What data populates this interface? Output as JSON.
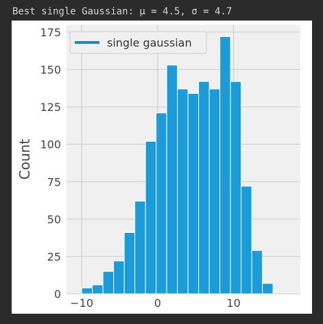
{
  "output": {
    "text": "Best single Gaussian: μ = 4.5, σ = 4.7"
  },
  "chart_data": {
    "type": "bar",
    "title": "",
    "xlabel": "",
    "ylabel": "Count",
    "bin_edges": [
      -10,
      -8.6,
      -7.2,
      -5.8,
      -4.4,
      -3.0,
      -1.6,
      -0.2,
      1.2,
      2.6,
      4.0,
      5.4,
      6.8,
      8.2,
      9.6,
      11.0,
      12.4,
      13.8,
      15.2
    ],
    "values": [
      4,
      6,
      15,
      22,
      41,
      62,
      102,
      121,
      153,
      137,
      134,
      142,
      137,
      172,
      142,
      72,
      29,
      7
    ],
    "xlim": [
      -12,
      18.8
    ],
    "ylim": [
      0,
      180
    ],
    "x_ticks": [
      -10,
      0,
      10
    ],
    "x_tick_labels": [
      "−10",
      "0",
      "10"
    ],
    "y_ticks": [
      0,
      25,
      50,
      75,
      100,
      125,
      150,
      175
    ],
    "y_tick_labels": [
      "0",
      "25",
      "50",
      "75",
      "100",
      "125",
      "150",
      "175"
    ],
    "grid": true,
    "legend": {
      "placement": "top-left",
      "entries": [
        {
          "label": "single gaussian",
          "color": "#008fd5"
        }
      ]
    },
    "bar_color": "#1a9cd8",
    "background": "#f0f0f0"
  }
}
